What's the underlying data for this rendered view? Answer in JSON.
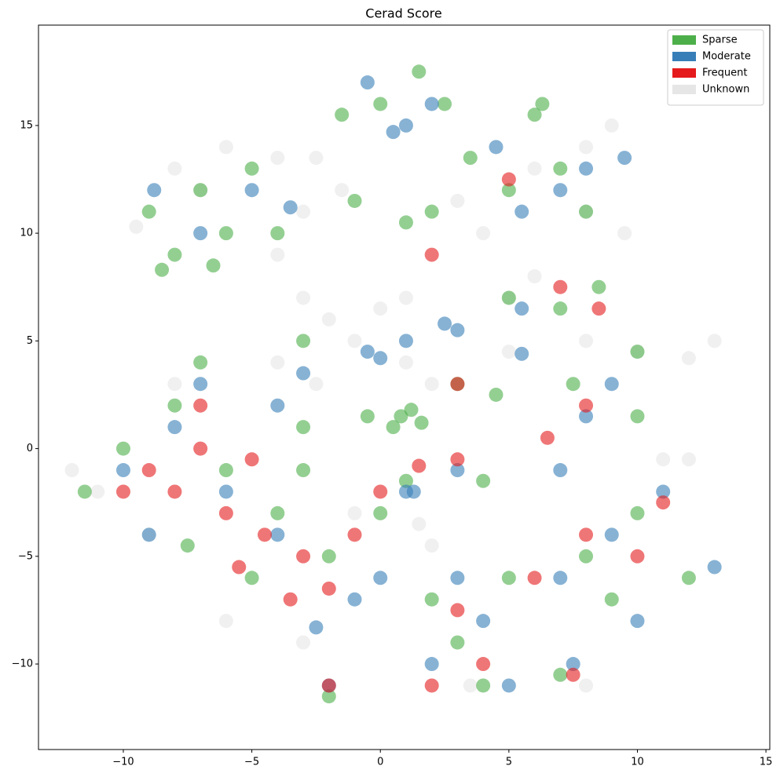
{
  "chart_data": {
    "type": "scatter",
    "title": "Cerad Score",
    "xlim": [
      -13.3,
      15.15
    ],
    "ylim": [
      -13.97,
      19.66
    ],
    "xticks": [
      {
        "value": -10,
        "label": "−10"
      },
      {
        "value": -5,
        "label": "−5"
      },
      0,
      5,
      10,
      15
    ],
    "yticks": [
      {
        "value": -10,
        "label": "−10"
      },
      {
        "value": -5,
        "label": "−5"
      },
      0,
      5,
      10,
      15
    ],
    "legend_loc": "upper right",
    "series": [
      {
        "name": "Unknown",
        "color": "#e6e6e6",
        "x": [
          -9.5,
          -8,
          -6,
          -4,
          -2.5,
          -1.5,
          -3,
          -4,
          -3,
          -2,
          -1,
          0,
          1,
          -4,
          -2.5,
          1,
          2,
          5,
          6,
          8,
          9,
          9.5,
          8,
          4,
          3,
          6,
          8,
          10,
          12,
          13,
          1.5,
          2,
          -9,
          -11,
          -12,
          -8,
          -6,
          -3,
          8,
          3.5,
          11,
          12,
          -1,
          5,
          -7
        ],
        "y": [
          10.3,
          13,
          14,
          13.5,
          13.5,
          12,
          11,
          9,
          7,
          6,
          5,
          6.5,
          7,
          4,
          3,
          4,
          3,
          4.5,
          13,
          14,
          15,
          10,
          11,
          10,
          11.5,
          8,
          5,
          4.5,
          4.2,
          5,
          -3.5,
          -4.5,
          -4,
          -2,
          -1,
          3,
          -8,
          -9,
          -11,
          -11,
          -0.5,
          -0.5,
          -3,
          7,
          12
        ]
      },
      {
        "name": "Sparse",
        "color": "#4daf4a",
        "x": [
          -9,
          -8,
          -7,
          -6,
          -5,
          -8.5,
          -6.5,
          -4,
          0,
          1.5,
          2.5,
          -1.5,
          -1,
          1,
          2,
          6,
          7,
          5,
          8,
          3.5,
          6.3,
          5,
          7,
          8.5,
          10,
          0.8,
          1.2,
          0.5,
          1.6,
          -0.5,
          -11.5,
          -10,
          -8,
          -7,
          -6,
          -4,
          -7.5,
          -5,
          -2,
          0,
          1,
          -3,
          3,
          4,
          2,
          5,
          8,
          10,
          12,
          9,
          7.5,
          10,
          4,
          -2,
          7,
          -3,
          3,
          4.5,
          -3
        ],
        "y": [
          11,
          9,
          12,
          10,
          13,
          8.3,
          8.5,
          10,
          16,
          17.5,
          16,
          15.5,
          11.5,
          10.5,
          11,
          15.5,
          13,
          12,
          11,
          13.5,
          16,
          7,
          6.5,
          7.5,
          4.5,
          1.5,
          1.8,
          1,
          1.2,
          1.5,
          -2,
          0,
          2,
          4,
          -1,
          -3,
          -4.5,
          -6,
          -5,
          -3,
          -1.5,
          1,
          -9,
          -11,
          -7,
          -6,
          -5,
          -3,
          -6,
          -7,
          3,
          1.5,
          -1.5,
          -11.5,
          -10.5,
          -1,
          3,
          2.5,
          5
        ]
      },
      {
        "name": "Moderate",
        "color": "#377eb8",
        "x": [
          -8.8,
          -3.5,
          -7,
          -5,
          -0.5,
          0.5,
          1,
          2,
          4.5,
          9.5,
          7,
          5.5,
          8,
          1,
          2.5,
          3,
          -0.5,
          0,
          5.5,
          -2.5,
          -1,
          0,
          1,
          1.3,
          -10,
          -8,
          -6,
          -4,
          -7,
          -4,
          2,
          4,
          5,
          3,
          7,
          9,
          11,
          13,
          10,
          8,
          9,
          7,
          5.5,
          3,
          -2,
          7.5,
          -9,
          -3
        ],
        "y": [
          12,
          11.2,
          10,
          12,
          17,
          14.7,
          15,
          16,
          14,
          13.5,
          12,
          11,
          13,
          5,
          5.8,
          5.5,
          4.5,
          4.2,
          4.4,
          -8.3,
          -7,
          -6,
          -2,
          -2,
          -1,
          1,
          -2,
          -4,
          3,
          2,
          -10,
          -8,
          -11,
          -6,
          -6,
          -4,
          -2,
          -5.5,
          -8,
          1.5,
          3,
          -1,
          6.5,
          -1,
          -11,
          -10,
          -4,
          3.5
        ]
      },
      {
        "name": "Frequent",
        "color": "#e41a1c",
        "x": [
          -9,
          -7,
          -5,
          -4.5,
          -3,
          -2,
          -6,
          -8,
          -7,
          -3.5,
          -1,
          3,
          2,
          4,
          6,
          8,
          10,
          11,
          7.5,
          6.5,
          8,
          7,
          8.5,
          3,
          1.5,
          3,
          2,
          5,
          -2,
          -5.5,
          0,
          -10
        ],
        "y": [
          -1,
          0,
          -0.5,
          -4,
          -5,
          -6.5,
          -3,
          -2,
          2,
          -7,
          -4,
          -7.5,
          -11,
          -10,
          -6,
          -4,
          -5,
          -2.5,
          -10.5,
          0.5,
          2,
          7.5,
          6.5,
          -0.5,
          -0.8,
          3,
          9,
          12.5,
          -11,
          -5.5,
          -2,
          -2
        ]
      }
    ]
  }
}
